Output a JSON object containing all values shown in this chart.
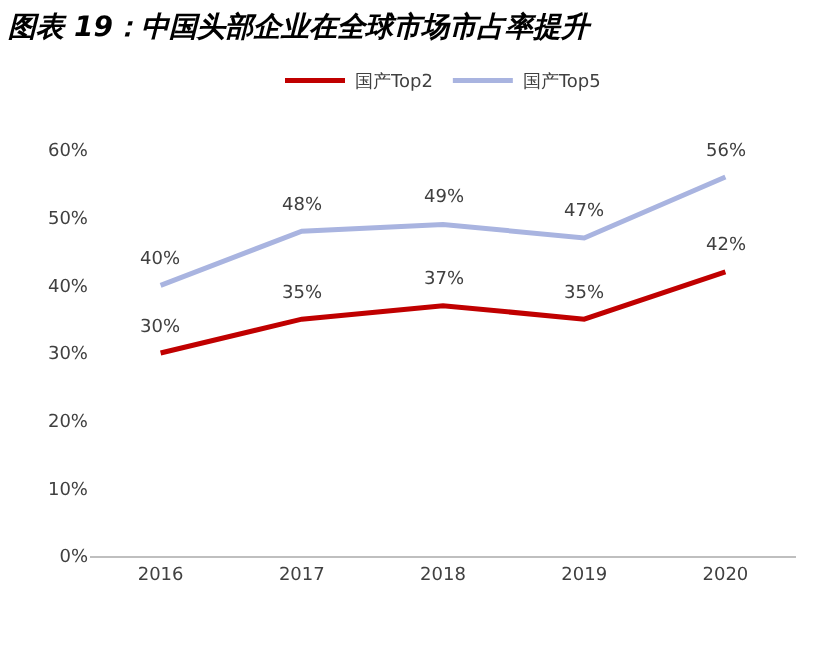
{
  "chart_data": {
    "type": "line",
    "title": "图表 19：中国头部企业在全球市场市占率提升",
    "categories": [
      "2016",
      "2017",
      "2018",
      "2019",
      "2020"
    ],
    "series": [
      {
        "name": "国产Top2",
        "color": "#c00000",
        "values": [
          30,
          35,
          37,
          35,
          42
        ],
        "value_labels": [
          "30%",
          "35%",
          "37%",
          "35%",
          "42%"
        ]
      },
      {
        "name": "国产Top5",
        "color": "#a9b4e0",
        "values": [
          40,
          48,
          49,
          47,
          56
        ],
        "value_labels": [
          "40%",
          "48%",
          "49%",
          "47%",
          "56%"
        ]
      }
    ],
    "ylim": [
      0,
      60
    ],
    "yticks": [
      {
        "value": 0,
        "label": "0%"
      },
      {
        "value": 10,
        "label": "10%"
      },
      {
        "value": 20,
        "label": "20%"
      },
      {
        "value": 30,
        "label": "30%"
      },
      {
        "value": 40,
        "label": "40%"
      },
      {
        "value": 50,
        "label": "50%"
      },
      {
        "value": 60,
        "label": "60%"
      }
    ],
    "legend": "top",
    "marker": "none",
    "line_style": "solid"
  }
}
